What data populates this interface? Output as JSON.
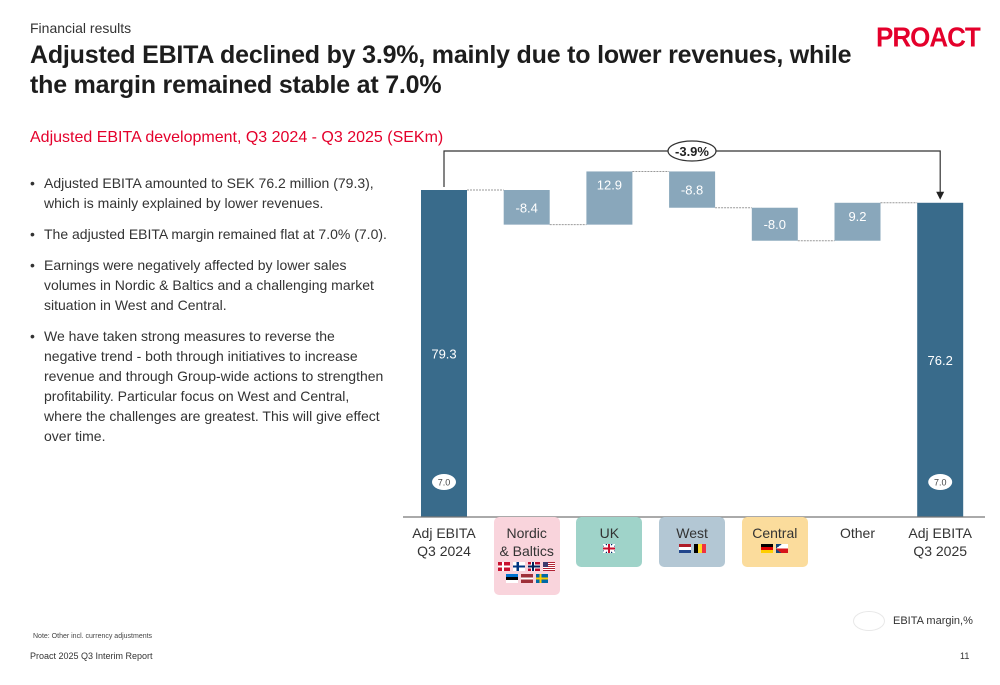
{
  "header": {
    "section": "Financial results",
    "title": "Adjusted EBITA declined by 3.9%, mainly due to lower revenues, while the margin remained stable at 7.0%",
    "logo": "PROACT",
    "subtitle": "Adjusted EBITA development, Q3 2024 - Q3 2025 (SEKm)"
  },
  "bullets": [
    "Adjusted EBITA amounted to SEK 76.2 million (79.3), which is mainly explained by lower revenues.",
    "The adjusted EBITA margin remained flat at 7.0% (7.0).",
    "Earnings were negatively affected by lower sales volumes in Nordic & Baltics and a challenging market situation in West and Central.",
    "We have taken strong measures to reverse the negative trend - both through initiatives to increase revenue and through Group-wide actions to strengthen profitability. Particular focus on West and Central, where the challenges are greatest. This will give effect over time."
  ],
  "chart_data": {
    "type": "bar",
    "subtype": "waterfall",
    "title": "Adjusted EBITA development, Q3 2024 - Q3 2025 (SEKm)",
    "xlabel": "",
    "ylabel": "",
    "ylim": [
      0,
      80
    ],
    "grid": false,
    "categories": [
      "Adj EBITA Q3 2024",
      "Nordic & Baltics",
      "UK",
      "West",
      "Central",
      "Other",
      "Adj EBITA Q3 2025"
    ],
    "category_lines": [
      [
        "Adj EBITA",
        "Q3 2024"
      ],
      [
        "Nordic",
        "& Baltics"
      ],
      [
        "UK"
      ],
      [
        "West"
      ],
      [
        "Central"
      ],
      [
        "Other"
      ],
      [
        "Adj EBITA",
        "Q3 2025"
      ]
    ],
    "values": [
      79.3,
      -8.4,
      12.9,
      -8.8,
      -8.0,
      9.2,
      76.2
    ],
    "kinds": [
      "total",
      "delta",
      "delta",
      "delta",
      "delta",
      "delta",
      "total"
    ],
    "labels": [
      "79.3",
      "-8.4",
      "12.9",
      "-8.8",
      "-8.0",
      "9.2",
      "76.2"
    ],
    "margins": {
      "Adj EBITA Q3 2024": "7.0",
      "Adj EBITA Q3 2025": "7.0"
    },
    "change_annotation": "-3.9%",
    "legend": {
      "label": "EBITA margin,%",
      "position": "bottom-right"
    },
    "colors": {
      "total": "#396b8b",
      "delta": "#89a7bb"
    },
    "category_colors": {
      "Nordic & Baltics": "#f9d4dc",
      "UK": "#9fd3c9",
      "West": "#b3c7d4",
      "Central": "#fbdc9c",
      "Other": null
    },
    "flags": {
      "Nordic & Baltics": [
        "denmark",
        "finland",
        "norway",
        "usa",
        "estonia",
        "latvia",
        "sweden"
      ],
      "UK": [
        "uk"
      ],
      "West": [
        "netherlands",
        "belgium"
      ],
      "Central": [
        "germany",
        "czechia"
      ]
    }
  },
  "footer": {
    "note": "Note: Other incl. currency adjustments",
    "report": "Proact 2025 Q3 Interim Report",
    "page": "11"
  }
}
